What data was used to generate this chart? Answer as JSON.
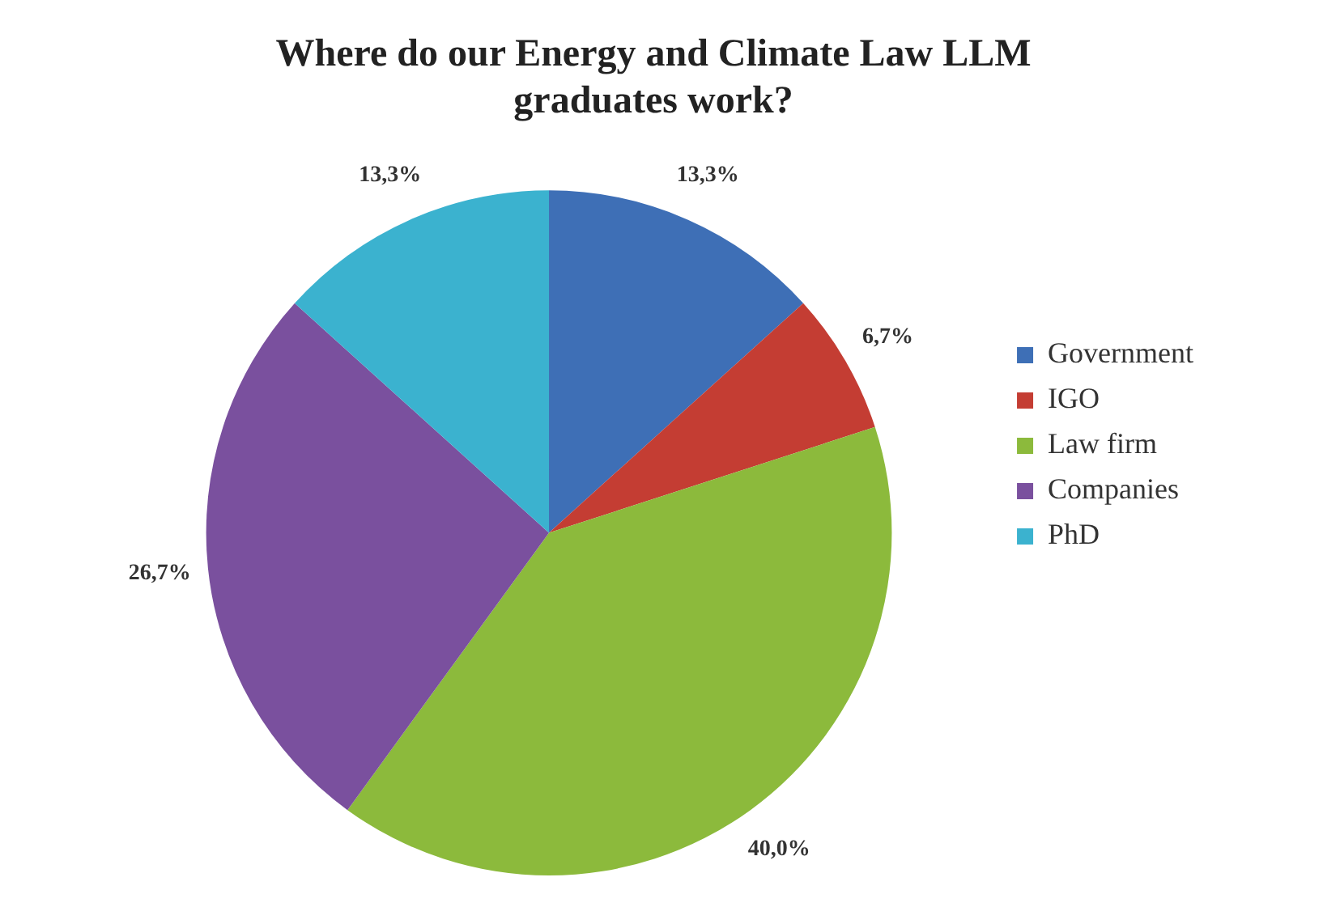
{
  "chart_data": {
    "type": "pie",
    "title": "Where do our Energy and Climate Law LLM\ngraduates work?",
    "categories": [
      "Government",
      "IGO",
      "Law firm",
      "Companies",
      "PhD"
    ],
    "values": [
      13.3,
      6.7,
      40.0,
      26.7,
      13.3
    ],
    "value_labels": [
      "13,3%",
      "6,7%",
      "40,0%",
      "26,7%",
      "13,3%"
    ],
    "colors": [
      "#3e6fb6",
      "#c43d33",
      "#8cba3c",
      "#7a509e",
      "#3bb2cf"
    ],
    "legend": "right"
  }
}
